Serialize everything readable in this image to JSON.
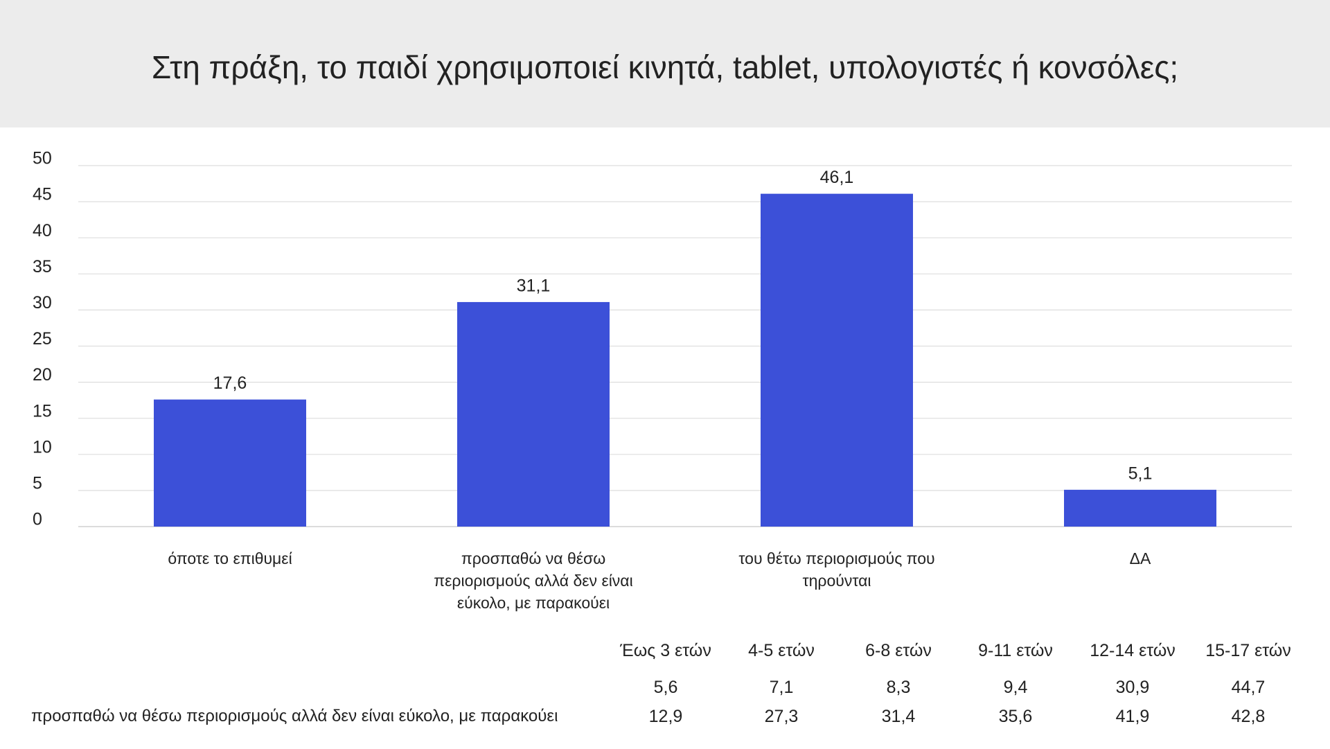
{
  "header": {
    "title": "Στη πράξη, το παιδί χρησιμοποιεί κινητά, tablet, υπολογιστές ή κονσόλες;"
  },
  "chart_data": {
    "type": "bar",
    "categories": [
      "όποτε το επιθυμεί",
      "προσπαθώ να θέσω περιορισμούς αλλά δεν είναι εύκολο, με παρακούει",
      "του θέτω περιορισμούς που τηρούνται",
      "ΔΑ"
    ],
    "values": [
      17.6,
      31.1,
      46.1,
      5.1
    ],
    "value_labels": [
      "17,6",
      "31,1",
      "46,1",
      "5,1"
    ],
    "color": "#3c50d8",
    "ylim": [
      0,
      50
    ],
    "yticks": [
      0,
      5,
      10,
      15,
      20,
      25,
      30,
      35,
      40,
      45,
      50
    ],
    "grid": true
  },
  "table": {
    "columns": [
      "Έως 3 ετών",
      "4-5 ετών",
      "6-8 ετών",
      "9-11 ετών",
      "12-14 ετών",
      "15-17 ετών"
    ],
    "rows": [
      {
        "values": [
          "5,6",
          "7,1",
          "8,3",
          "9,4",
          "30,9",
          "44,7"
        ]
      },
      {
        "label": "προσπαθώ να θέσω περιορισμούς αλλά δεν είναι εύκολο, με παρακούει",
        "values": [
          "12,9",
          "27,3",
          "31,4",
          "35,6",
          "41,9",
          "42,8"
        ]
      }
    ]
  }
}
